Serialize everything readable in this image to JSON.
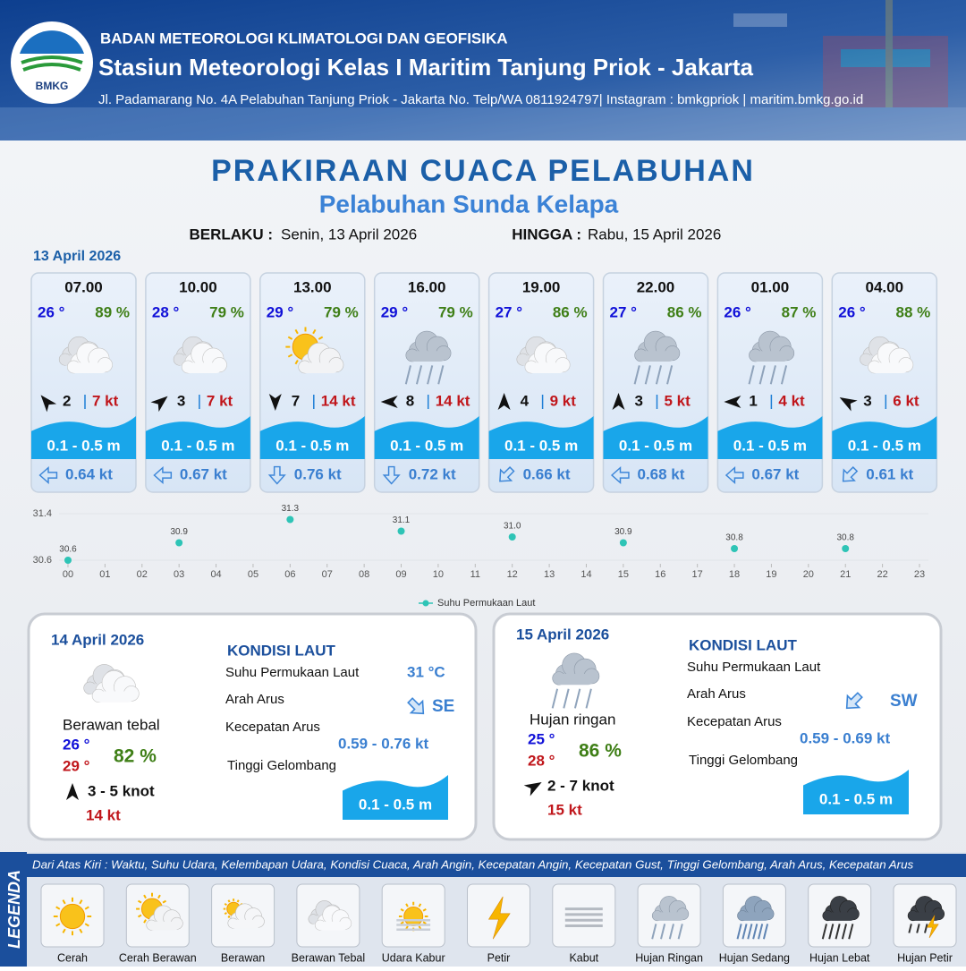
{
  "header": {
    "logo": "BMKG",
    "agency": "BADAN METEOROLOGI KLIMATOLOGI DAN GEOFISIKA",
    "station": "Stasiun Meteorologi Kelas I Maritim Tanjung Priok - Jakarta",
    "address": "Jl. Padamarang No. 4A Pelabuhan Tanjung Priok - Jakarta No. Telp/WA 0811924797| Instagram : bmkgpriok | maritim.bmkg.go.id"
  },
  "title": "PRAKIRAAN CUACA PELABUHAN",
  "subtitle": "Pelabuhan Sunda Kelapa",
  "validity": {
    "from_label": "BERLAKU :",
    "from": "Senin, 13 April 2026",
    "to_label": "HINGGA :",
    "to": "Rabu, 15 April 2026"
  },
  "day1": {
    "date": "13 April 2026",
    "cards": [
      {
        "time": "07.00",
        "temp": "26 °",
        "humidity": "89 %",
        "condition": "Berawan Tebal",
        "wind_deg": -40,
        "wind": "2",
        "gust": "7 kt",
        "wave": "0.1 - 0.5 m",
        "current_deg": -90,
        "current": "0.64 kt"
      },
      {
        "time": "10.00",
        "temp": "28 °",
        "humidity": "79 %",
        "condition": "Berawan Tebal",
        "wind_deg": 50,
        "wind": "3",
        "gust": "7 kt",
        "wave": "0.1 - 0.5 m",
        "current_deg": -90,
        "current": "0.67 kt"
      },
      {
        "time": "13.00",
        "temp": "29 °",
        "humidity": "79 %",
        "condition": "Cerah Berawan",
        "wind_deg": 180,
        "wind": "7",
        "gust": "14 kt",
        "wave": "0.1 - 0.5 m",
        "current_deg": 180,
        "current": "0.76 kt"
      },
      {
        "time": "16.00",
        "temp": "29 °",
        "humidity": "79 %",
        "condition": "Hujan Ringan",
        "wind_deg": -90,
        "wind": "8",
        "gust": "14 kt",
        "wave": "0.1 - 0.5 m",
        "current_deg": 180,
        "current": "0.72 kt"
      },
      {
        "time": "19.00",
        "temp": "27 °",
        "humidity": "86 %",
        "condition": "Berawan Tebal",
        "wind_deg": 0,
        "wind": "4",
        "gust": "9 kt",
        "wave": "0.1 - 0.5 m",
        "current_deg": -135,
        "current": "0.66 kt"
      },
      {
        "time": "22.00",
        "temp": "27 °",
        "humidity": "86 %",
        "condition": "Hujan Ringan",
        "wind_deg": 0,
        "wind": "3",
        "gust": "5 kt",
        "wave": "0.1 - 0.5 m",
        "current_deg": -90,
        "current": "0.68 kt"
      },
      {
        "time": "01.00",
        "temp": "26 °",
        "humidity": "87 %",
        "condition": "Hujan Ringan",
        "wind_deg": -90,
        "wind": "1",
        "gust": "4 kt",
        "wave": "0.1 - 0.5 m",
        "current_deg": -90,
        "current": "0.67 kt"
      },
      {
        "time": "04.00",
        "temp": "26 °",
        "humidity": "88 %",
        "condition": "Berawan Tebal",
        "wind_deg": -60,
        "wind": "3",
        "gust": "6 kt",
        "wave": "0.1 - 0.5 m",
        "current_deg": -135,
        "current": "0.61 kt"
      }
    ]
  },
  "chart_data": {
    "type": "scatter",
    "x": [
      0,
      3,
      6,
      9,
      12,
      15,
      18,
      21
    ],
    "series": [
      {
        "name": "Suhu Permukaan Laut",
        "color": "#2ec4b6",
        "values": [
          30.6,
          30.9,
          31.3,
          31.1,
          31.0,
          30.9,
          30.8,
          30.8
        ],
        "value_labels": [
          "30.6",
          "30.9",
          "31.3",
          "31.1",
          "31.0",
          "30.9",
          "30.8",
          "30.8"
        ]
      }
    ],
    "xlim": [
      0,
      23
    ],
    "xticks": [
      {
        "value": 0,
        "label": "00"
      },
      {
        "value": 1,
        "label": "01"
      },
      {
        "value": 2,
        "label": "02"
      },
      {
        "value": 3,
        "label": "03"
      },
      {
        "value": 4,
        "label": "04"
      },
      {
        "value": 5,
        "label": "05"
      },
      {
        "value": 6,
        "label": "06"
      },
      {
        "value": 7,
        "label": "07"
      },
      {
        "value": 8,
        "label": "08"
      },
      {
        "value": 9,
        "label": "09"
      },
      10,
      11,
      12,
      13,
      14,
      15,
      16,
      17,
      18,
      19,
      20,
      21,
      22,
      23
    ],
    "ylim": [
      30.6,
      31.4
    ],
    "yticks": [
      30.6,
      31.4
    ],
    "grid": true,
    "legend": "bottom"
  },
  "days": [
    {
      "date": "14 April 2026",
      "condition": "Berawan tebal",
      "temp_min": "26 °",
      "temp_max": "29 °",
      "humidity": "82 %",
      "wind_deg": 0,
      "wind": "3  - 5 knot",
      "gust": "14 kt",
      "sea": {
        "heading": "KONDISI LAUT",
        "sst_label": "Suhu Permukaan Laut",
        "sst": "31 °C",
        "dir_label": "Arah Arus",
        "current_deg": 135,
        "dir": "SE",
        "speed_label": "Kecepatan Arus",
        "speed": "0.59  - 0.76 kt",
        "wave_label": "Tinggi Gelombang",
        "wave": "0.1 - 0.5 m"
      }
    },
    {
      "date": "15 April 2026",
      "condition": "Hujan ringan",
      "temp_min": "25 °",
      "temp_max": "28 °",
      "humidity": "86 %",
      "wind_deg": 60,
      "wind": "2 - 7 knot",
      "gust": "15 kt",
      "sea": {
        "heading": "KONDISI LAUT",
        "sst_label": "Suhu Permukaan Laut",
        "dir_label": "Arah Arus",
        "current_deg": -135,
        "dir": "SW",
        "speed_label": "Kecepatan Arus",
        "speed": "0.59 - 0.69 kt",
        "wave_label": "Tinggi Gelombang",
        "wave": "0.1 - 0.5 m"
      }
    }
  ],
  "legend": {
    "title": "LEGENDA",
    "description": "Dari Atas Kiri : Waktu, Suhu Udara, Kelembapan Udara, Kondisi Cuaca, Arah Angin, Kecepatan Angin, Kecepatan Gust, Tinggi Gelombang, Arah Arus, Kecepatan Arus",
    "items": [
      "Cerah",
      "Cerah Berawan",
      "Berawan",
      "Berawan Tebal",
      "Udara Kabur",
      "Petir",
      "Kabut",
      "Hujan Ringan",
      "Hujan Sedang",
      "Hujan Lebat",
      "Hujan Petir"
    ]
  }
}
